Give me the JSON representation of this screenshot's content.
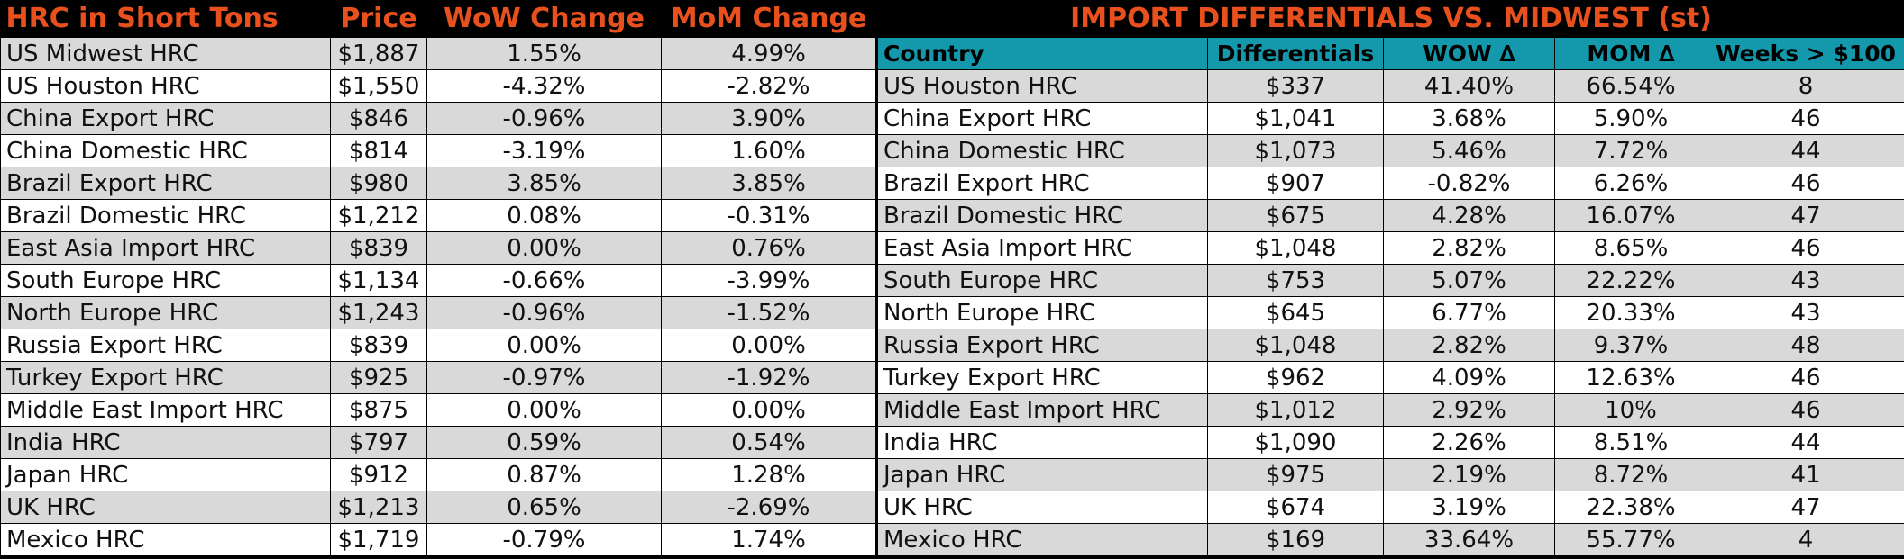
{
  "left_table": {
    "headers": [
      "HRC in Short Tons",
      "Price",
      "WoW Change",
      "MoM Change"
    ],
    "rows": [
      {
        "name": "US Midwest HRC",
        "price": "$1,887",
        "wow": "1.55%",
        "mom": "4.99%"
      },
      {
        "name": "US Houston HRC",
        "price": "$1,550",
        "wow": "-4.32%",
        "mom": "-2.82%"
      },
      {
        "name": "China Export HRC",
        "price": "$846",
        "wow": "-0.96%",
        "mom": "3.90%"
      },
      {
        "name": "China Domestic HRC",
        "price": "$814",
        "wow": "-3.19%",
        "mom": "1.60%"
      },
      {
        "name": "Brazil Export HRC",
        "price": "$980",
        "wow": "3.85%",
        "mom": "3.85%"
      },
      {
        "name": "Brazil Domestic HRC",
        "price": "$1,212",
        "wow": "0.08%",
        "mom": "-0.31%"
      },
      {
        "name": "East Asia Import HRC",
        "price": "$839",
        "wow": "0.00%",
        "mom": "0.76%"
      },
      {
        "name": "South Europe HRC",
        "price": "$1,134",
        "wow": "-0.66%",
        "mom": "-3.99%"
      },
      {
        "name": "North Europe HRC",
        "price": "$1,243",
        "wow": "-0.96%",
        "mom": "-1.52%"
      },
      {
        "name": "Russia Export HRC",
        "price": "$839",
        "wow": "0.00%",
        "mom": "0.00%"
      },
      {
        "name": "Turkey Export HRC",
        "price": "$925",
        "wow": "-0.97%",
        "mom": "-1.92%"
      },
      {
        "name": "Middle East Import HRC",
        "price": "$875",
        "wow": "0.00%",
        "mom": "0.00%"
      },
      {
        "name": "India HRC",
        "price": "$797",
        "wow": "0.59%",
        "mom": "0.54%"
      },
      {
        "name": "Japan HRC",
        "price": "$912",
        "wow": "0.87%",
        "mom": "1.28%"
      },
      {
        "name": "UK HRC",
        "price": "$1,213",
        "wow": "0.65%",
        "mom": "-2.69%"
      },
      {
        "name": "Mexico HRC",
        "price": "$1,719",
        "wow": "-0.79%",
        "mom": "1.74%"
      }
    ]
  },
  "right_table": {
    "title": "IMPORT DIFFERENTIALS VS. MIDWEST (st)",
    "headers": [
      "Country",
      "Differentials",
      "WOW ∆",
      "MOM ∆",
      "Weeks > $100"
    ],
    "rows": [
      {
        "name": "US Houston HRC",
        "diff": "$337",
        "wow": "41.40%",
        "mom": "66.54%",
        "weeks": "8"
      },
      {
        "name": "China Export HRC",
        "diff": "$1,041",
        "wow": "3.68%",
        "mom": "5.90%",
        "weeks": "46"
      },
      {
        "name": "China Domestic HRC",
        "diff": "$1,073",
        "wow": "5.46%",
        "mom": "7.72%",
        "weeks": "44"
      },
      {
        "name": "Brazil Export HRC",
        "diff": "$907",
        "wow": "-0.82%",
        "mom": "6.26%",
        "weeks": "46"
      },
      {
        "name": "Brazil Domestic HRC",
        "diff": "$675",
        "wow": "4.28%",
        "mom": "16.07%",
        "weeks": "47"
      },
      {
        "name": "East Asia Import HRC",
        "diff": "$1,048",
        "wow": "2.82%",
        "mom": "8.65%",
        "weeks": "46"
      },
      {
        "name": "South Europe HRC",
        "diff": "$753",
        "wow": "5.07%",
        "mom": "22.22%",
        "weeks": "43"
      },
      {
        "name": "North Europe HRC",
        "diff": "$645",
        "wow": "6.77%",
        "mom": "20.33%",
        "weeks": "43"
      },
      {
        "name": "Russia Export HRC",
        "diff": "$1,048",
        "wow": "2.82%",
        "mom": "9.37%",
        "weeks": "48"
      },
      {
        "name": "Turkey Export HRC",
        "diff": "$962",
        "wow": "4.09%",
        "mom": "12.63%",
        "weeks": "46"
      },
      {
        "name": "Middle East Import HRC",
        "diff": "$1,012",
        "wow": "2.92%",
        "mom": "10%",
        "weeks": "46"
      },
      {
        "name": "India HRC",
        "diff": "$1,090",
        "wow": "2.26%",
        "mom": "8.51%",
        "weeks": "44"
      },
      {
        "name": "Japan HRC",
        "diff": "$975",
        "wow": "2.19%",
        "mom": "8.72%",
        "weeks": "41"
      },
      {
        "name": "UK HRC",
        "diff": "$674",
        "wow": "3.19%",
        "mom": "22.38%",
        "weeks": "47"
      },
      {
        "name": "Mexico HRC",
        "diff": "$169",
        "wow": "33.64%",
        "mom": "55.77%",
        "weeks": "4"
      }
    ]
  },
  "colors": {
    "header_text": "#e8501e",
    "subheader_bg": "#1498ab",
    "row_shade": "#d9d9d9",
    "background": "#000000"
  }
}
